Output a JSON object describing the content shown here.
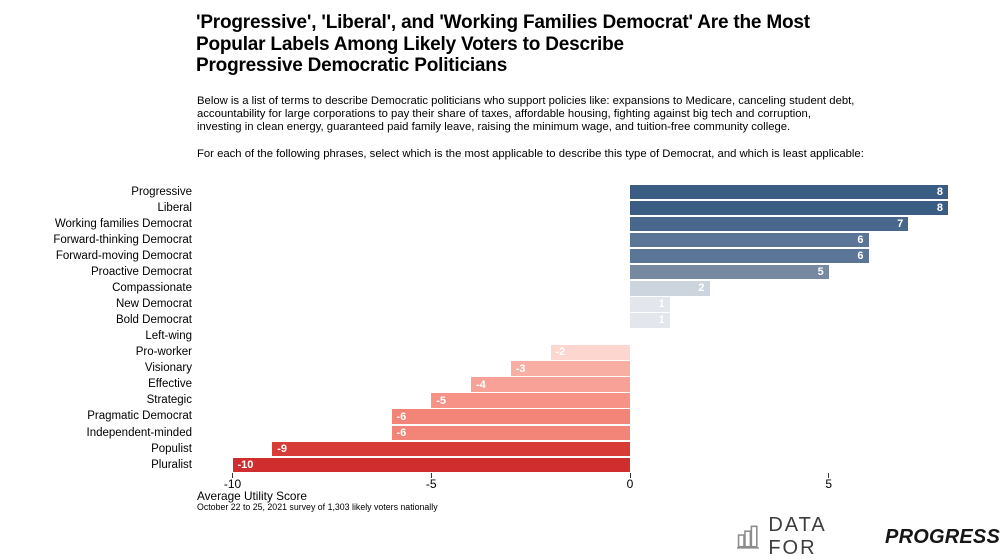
{
  "header": {
    "title": "'Progressive', 'Liberal', and 'Working Families Democrat' Are the Most\nPopular Labels Among Likely Voters to Describe\nProgressive Democratic Politicians",
    "description": "Below is a list of terms to describe Democratic politicians who support policies like: expansions to Medicare, canceling student debt,\naccountability for large corporations to pay their share of taxes, affordable housing, fighting against big tech and corruption,\ninvesting in clean energy, guaranteed paid family leave, raising the minimum wage, and tuition-free community college.",
    "prompt": "For each of the following phrases, select which is the most applicable to describe this type of Democrat, and which is least applicable:"
  },
  "chart_data": {
    "type": "bar",
    "orientation": "horizontal-diverging",
    "title": "'Progressive', 'Liberal', and 'Working Families Democrat' Are the Most Popular Labels Among Likely Voters to Describe Progressive Democratic Politicians",
    "categories": [
      "Progressive",
      "Liberal",
      "Working families Democrat",
      "Forward-thinking Democrat",
      "Forward-moving Democrat",
      "Proactive Democrat",
      "Compassionate",
      "New Democrat",
      "Bold Democrat",
      "Left-wing",
      "Pro-worker",
      "Visionary",
      "Effective",
      "Strategic",
      "Pragmatic Democrat",
      "Independent-minded",
      "Populist",
      "Pluralist"
    ],
    "values": [
      8,
      8,
      7,
      6,
      6,
      5,
      2,
      1,
      1,
      0,
      -2,
      -3,
      -4,
      -5,
      -6,
      -6,
      -9,
      -10
    ],
    "bar_colors": [
      "#395d83",
      "#395d83",
      "#47678c",
      "#5a7596",
      "#5a7596",
      "#7689a1",
      "#ccd4de",
      "#e3e7ed",
      "#e3e7ed",
      "none",
      "#fcd6cf",
      "#f9aea4",
      "#f8a297",
      "#f69286",
      "#f28478",
      "#f28478",
      "#d73c36",
      "#d02e2e"
    ],
    "value_label_color": "#ffffff",
    "xlabel": "Average Utility Score",
    "x_ticks": [
      -10,
      -5,
      0,
      5
    ],
    "xlim": [
      -10.9,
      8.9
    ],
    "grid": false,
    "legend": false,
    "footnote": "October 22 to 25, 2021 survey of 1,303 likely voters nationally"
  },
  "footer": {
    "logo_prefix": "DATA FOR",
    "logo_suffix": "PROGRESS",
    "logo_icon": "bar-chart-icon",
    "logo_icon_color": "#8c8c8c"
  }
}
